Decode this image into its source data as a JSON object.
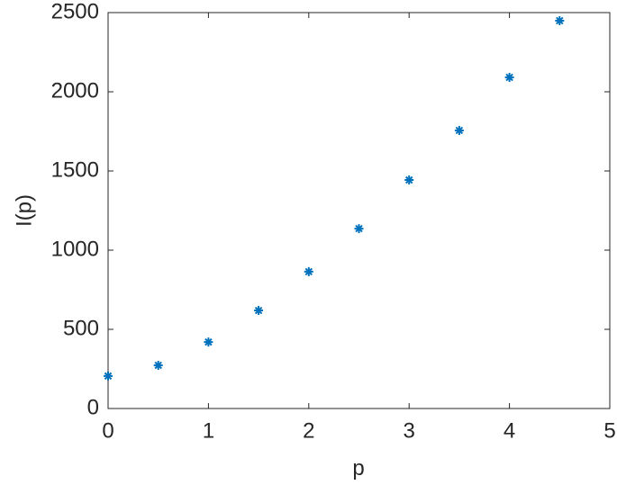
{
  "chart_data": {
    "type": "scatter",
    "x_label": "p",
    "y_label": "I(p)",
    "series": [
      {
        "color": "#0072bd",
        "x": [
          0,
          0.5,
          1,
          1.5,
          2,
          2.5,
          3,
          3.5,
          4,
          4.5
        ],
        "values": [
          205,
          273,
          420,
          619,
          864,
          1136,
          1443,
          1756,
          2091,
          2449
        ]
      }
    ],
    "xlim": [
      0,
      5
    ],
    "xticks": [
      0,
      1,
      2,
      3,
      4,
      5
    ],
    "ylim": [
      0,
      2500
    ],
    "yticks": [
      0,
      500,
      1000,
      1500,
      2000,
      2500
    ],
    "grid": false
  }
}
